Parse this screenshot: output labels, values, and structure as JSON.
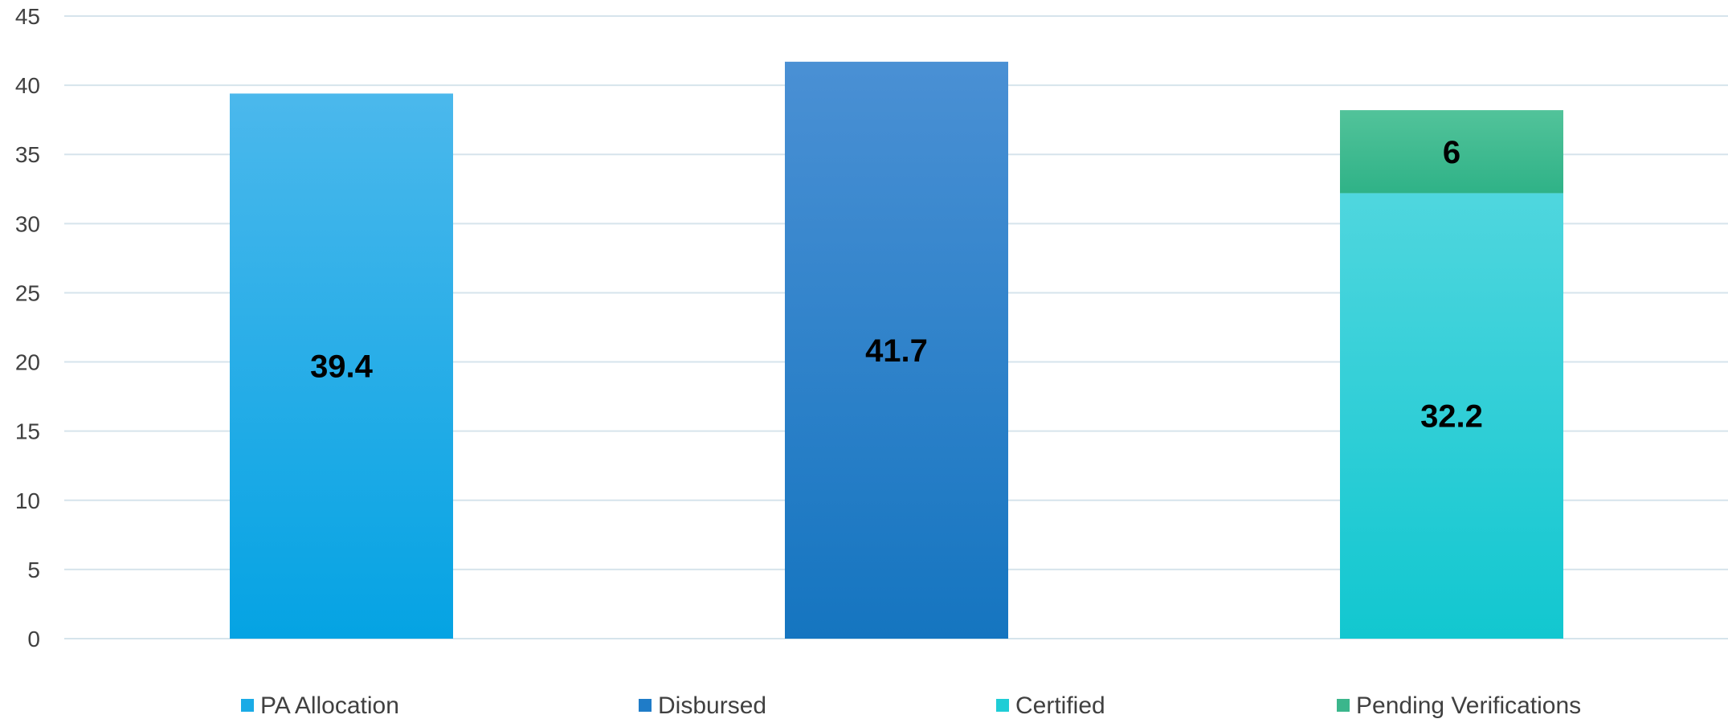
{
  "chart_data": {
    "type": "bar",
    "stacked": true,
    "title": "",
    "xlabel": "",
    "ylabel": "",
    "ylim": [
      0,
      45
    ],
    "y_ticks": [
      0,
      5,
      10,
      15,
      20,
      25,
      30,
      35,
      40,
      45
    ],
    "grid": true,
    "legend_position": "bottom",
    "categories": [
      "",
      "",
      ""
    ],
    "series": [
      {
        "name": "PA Allocation",
        "values": [
          39.4,
          null,
          null
        ],
        "color_top": "#4bb8ec",
        "color_bottom": "#05a3e3",
        "legend_color": "#1aabe6"
      },
      {
        "name": "Disbursed",
        "values": [
          null,
          41.7,
          null
        ],
        "color_top": "#4a90d4",
        "color_bottom": "#1575c0",
        "legend_color": "#1f7cc8"
      },
      {
        "name": "Certified",
        "values": [
          null,
          null,
          32.2
        ],
        "color_top": "#4fd6de",
        "color_bottom": "#12c7d0",
        "legend_color": "#1fcdd6"
      },
      {
        "name": "Pending Verifications",
        "values": [
          null,
          null,
          6
        ],
        "color_top": "#52c39a",
        "color_bottom": "#2fb287",
        "legend_color": "#3bb68c"
      }
    ],
    "data_labels": [
      {
        "series": 0,
        "category": 0,
        "text": "39.4"
      },
      {
        "series": 1,
        "category": 1,
        "text": "41.7"
      },
      {
        "series": 2,
        "category": 2,
        "text": "32.2"
      },
      {
        "series": 3,
        "category": 2,
        "text": "6"
      }
    ]
  }
}
